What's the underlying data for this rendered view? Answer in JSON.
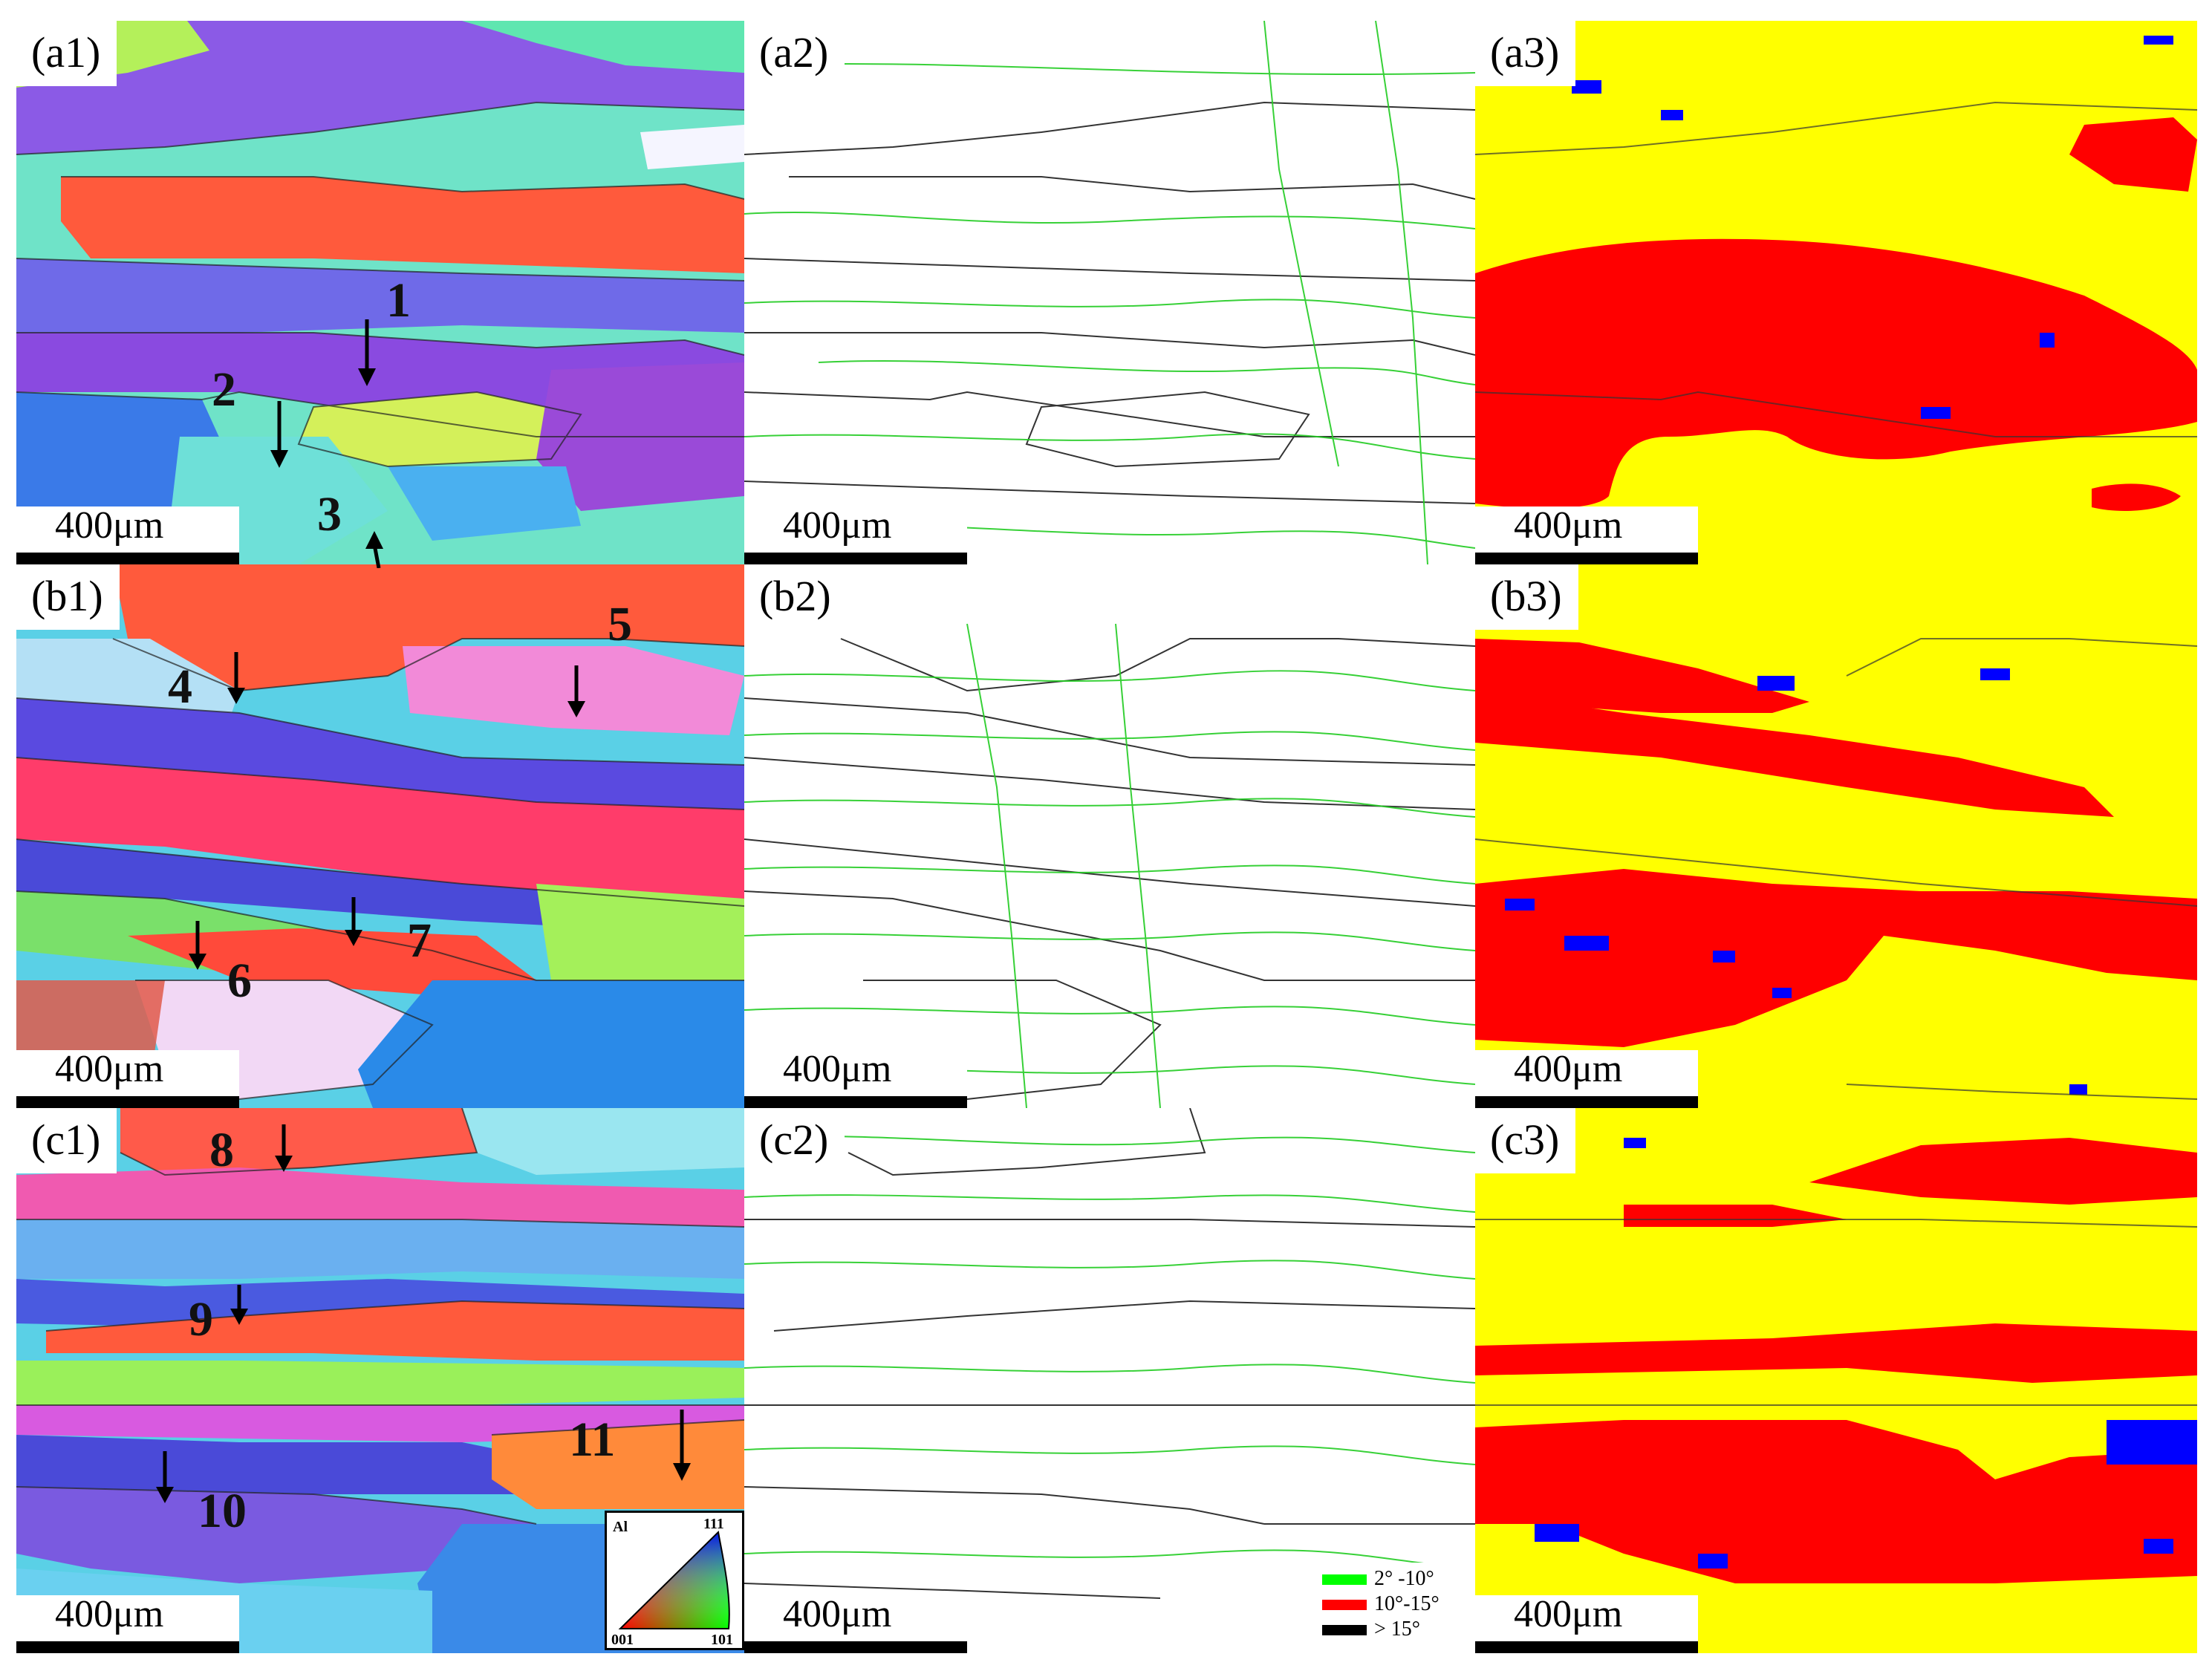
{
  "figure": {
    "panels": {
      "a1": {
        "label": "(a1)",
        "scale": "400μm",
        "kind": "ipf"
      },
      "a2": {
        "label": "(a2)",
        "scale": "400μm",
        "kind": "boundary"
      },
      "a3": {
        "label": "(a3)",
        "scale": "400μm",
        "kind": "phase"
      },
      "b1": {
        "label": "(b1)",
        "scale": "400μm",
        "kind": "ipf"
      },
      "b2": {
        "label": "(b2)",
        "scale": "400μm",
        "kind": "boundary"
      },
      "b3": {
        "label": "(b3)",
        "scale": "400μm",
        "kind": "phase"
      },
      "c1": {
        "label": "(c1)",
        "scale": "400μm",
        "kind": "ipf"
      },
      "c2": {
        "label": "(c2)",
        "scale": "400μm",
        "kind": "boundary"
      },
      "c3": {
        "label": "(c3)",
        "scale": "400μm",
        "kind": "phase"
      }
    },
    "grain_numbers": [
      "1",
      "2",
      "3",
      "4",
      "5",
      "6",
      "7",
      "8",
      "9",
      "10",
      "11"
    ],
    "ipf_legend": {
      "material": "Al",
      "corner_top": "111",
      "corner_left": "001",
      "corner_right": "101"
    },
    "misorientation_legend": [
      {
        "label": "2° -10°",
        "color": "#00ff00"
      },
      {
        "label": "10°-15°",
        "color": "#ff0000"
      },
      {
        "label": "> 15°",
        "color": "#000000"
      }
    ],
    "colors": {
      "phase_yellow": "#ffff00",
      "phase_red": "#ff0000",
      "phase_blue": "#0000ff"
    }
  }
}
